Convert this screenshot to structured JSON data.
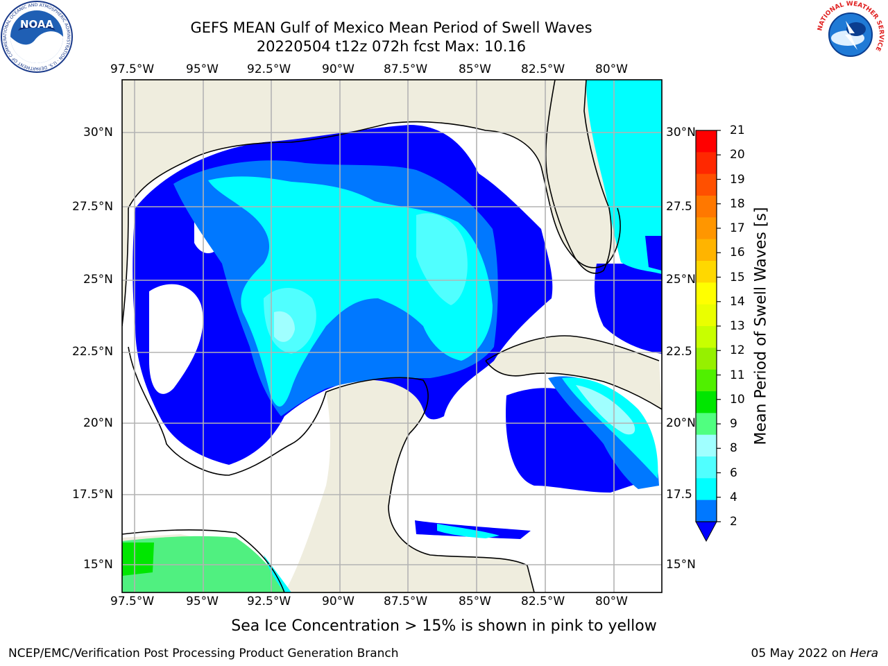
{
  "title": {
    "line1": "GEFS MEAN Gulf of Mexico Mean Period of Swell Waves",
    "line2": "20220504 t12z 072h fcst   Max: 10.16"
  },
  "map": {
    "lon_labels": [
      "97.5°W",
      "95°W",
      "92.5°W",
      "90°W",
      "87.5°W",
      "85°W",
      "82.5°W",
      "80°W"
    ],
    "lat_labels_left": [
      "30°N",
      "27.5°N",
      "25°N",
      "22.5°N",
      "20°N",
      "17.5°N",
      "15°N"
    ],
    "lat_labels_right": [
      "30°N",
      "27.5",
      "25°N",
      "22.5",
      "20°N",
      "17.5",
      "15°N"
    ],
    "colors": {
      "land": "#efedde",
      "ocean_no_swell": "#ffffff",
      "coast": "#000000",
      "grid": "#b3b3b3"
    }
  },
  "colorbar": {
    "label": "Mean Period of Swell Waves [s]",
    "ticks": [
      "21",
      "20",
      "19",
      "18",
      "17",
      "16",
      "15",
      "14",
      "13",
      "12",
      "11",
      "10",
      "9",
      "8",
      "6",
      "4",
      "2"
    ],
    "colors_top_to_bottom": [
      "#ff0000",
      "#ff2800",
      "#ff5000",
      "#ff7800",
      "#ff9600",
      "#ffb400",
      "#ffd800",
      "#ffff00",
      "#eaff00",
      "#c8ff00",
      "#96f000",
      "#50f000",
      "#00e600",
      "#50ff80",
      "#a0ffff",
      "#50ffff",
      "#00ffff",
      "#0078ff"
    ],
    "under_color": "#0000ff"
  },
  "caption": "Sea Ice Concentration > 15% is shown in pink to yellow",
  "footer": {
    "left": "NCEP/EMC/Verification Post Processing Product Generation Branch",
    "right_prefix": "05 May 2022 on ",
    "right_host": "Hera"
  },
  "logos": {
    "noaa": {
      "text": "NOAA",
      "ring": "NATIONAL OCEANIC AND ATMOSPHERIC ADMINISTRATION · U.S. DEPARTMENT OF COMMERCE"
    },
    "nws": {
      "ring": "NATIONAL WEATHER SERVICE"
    }
  }
}
